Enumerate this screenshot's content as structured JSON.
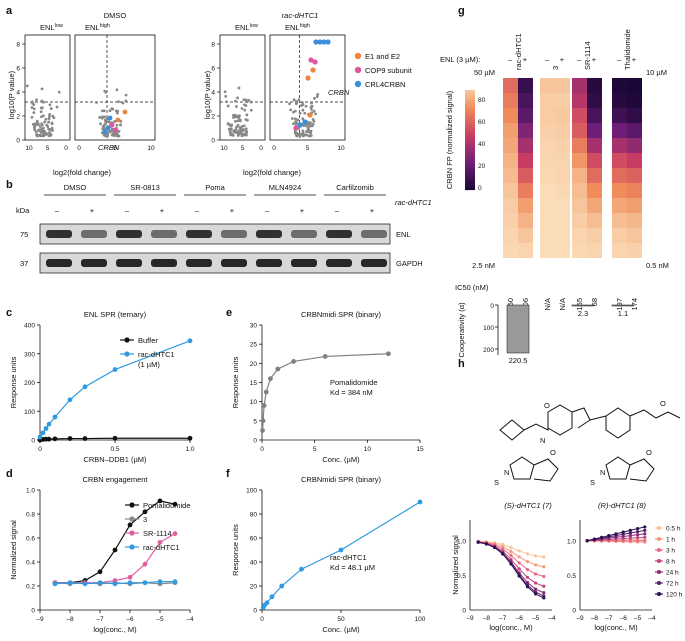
{
  "panel_labels": {
    "a": "a",
    "b": "b",
    "c": "c",
    "d": "d",
    "e": "e",
    "f": "f",
    "g": "g",
    "h": "h"
  },
  "panel_a": {
    "left_title": "DMSO",
    "right_title": "rac-dHTC1",
    "enl_low": "ENL",
    "enl_low_sup": "low",
    "enl_high": "ENL",
    "enl_high_sup": "high",
    "ylabel": "log10(P value)",
    "xlabel": "log2(fold change)",
    "yticks": [
      "0",
      "2",
      "4",
      "6",
      "8"
    ],
    "xticks_left": [
      "10",
      "5",
      "0"
    ],
    "xticks_right": [
      "0",
      "5",
      "10"
    ],
    "gene_crbn": "CRBN",
    "legend": [
      {
        "label": "E1 and E2",
        "color": "#f0843a"
      },
      {
        "label": "COP9 subunit",
        "color": "#e0579e"
      },
      {
        "label": "CRL4CRBN",
        "color": "#3b8fd9"
      }
    ]
  },
  "panel_b": {
    "groups": [
      "DMSO",
      "SR-0813",
      "Poma",
      "MLN4924",
      "Carfilzomib"
    ],
    "kda_label": "kDa",
    "treatment_label": "rac-dHTC1",
    "signs": [
      "–",
      "+",
      "–",
      "+",
      "–",
      "+",
      "–",
      "+",
      "–",
      "+"
    ],
    "rows": [
      {
        "kda": "75",
        "name": "ENL"
      },
      {
        "kda": "37",
        "name": "GAPDH"
      }
    ]
  },
  "chart_data": [
    {
      "panel": "c",
      "type": "line",
      "title": "ENL SPR (ternary)",
      "xlabel": "CRBN–DDB1 (µM)",
      "ylabel": "Response units",
      "xlim": [
        0,
        1
      ],
      "ylim": [
        0,
        400
      ],
      "xticks": [
        "0",
        "0.5",
        "1.0"
      ],
      "yticks": [
        "0",
        "100",
        "200",
        "300",
        "400"
      ],
      "series": [
        {
          "name": "Buffer",
          "color": "#111111",
          "x": [
            0,
            0.02,
            0.04,
            0.06,
            0.1,
            0.2,
            0.3,
            0.5,
            1.0
          ],
          "y": [
            0,
            2,
            3,
            3,
            4,
            5,
            5,
            6,
            6
          ]
        },
        {
          "name": "rac-dHTC1",
          "sub": "(1 µM)",
          "color": "#2f9be0",
          "x": [
            0,
            0.02,
            0.04,
            0.06,
            0.1,
            0.2,
            0.3,
            0.5,
            1.0
          ],
          "y": [
            10,
            25,
            40,
            55,
            80,
            140,
            185,
            245,
            345
          ]
        }
      ]
    },
    {
      "panel": "d",
      "type": "scatter",
      "title": "CRBN engagement",
      "xlabel": "log(conc., M)",
      "ylabel": "Normalized signal",
      "xlim": [
        -9,
        -4
      ],
      "ylim": [
        0,
        1.1
      ],
      "xticks": [
        "–9",
        "–8",
        "–7",
        "–6",
        "–5",
        "–4"
      ],
      "yticks": [
        "0",
        "0.2",
        "0.4",
        "0.6",
        "0.8",
        "1.0"
      ],
      "series": [
        {
          "name": "Pomalidomide",
          "color": "#111111",
          "x": [
            -8.5,
            -8,
            -7.5,
            -7,
            -6.5,
            -6,
            -5.5,
            -5,
            -4.5
          ],
          "y": [
            0.25,
            0.25,
            0.27,
            0.35,
            0.55,
            0.78,
            0.9,
            1.0,
            0.97
          ]
        },
        {
          "name": "3",
          "color": "#888888",
          "x": [
            -8.5,
            -8,
            -7.5,
            -7,
            -6.5,
            -6,
            -5.5,
            -5,
            -4.5
          ],
          "y": [
            0.25,
            0.24,
            0.25,
            0.24,
            0.25,
            0.24,
            0.25,
            0.24,
            0.25
          ]
        },
        {
          "name": "SR-1114",
          "color": "#e05fa0",
          "x": [
            -8.5,
            -8,
            -7.5,
            -7,
            -6.5,
            -6,
            -5.5,
            -5,
            -4.5
          ],
          "y": [
            0.25,
            0.25,
            0.25,
            0.25,
            0.27,
            0.3,
            0.42,
            0.62,
            0.7
          ]
        },
        {
          "name": "rac-dHTC1",
          "color": "#2f9be0",
          "x": [
            -8.5,
            -8,
            -7.5,
            -7,
            -6.5,
            -6,
            -5.5,
            -5,
            -4.5
          ],
          "y": [
            0.24,
            0.25,
            0.24,
            0.25,
            0.24,
            0.25,
            0.25,
            0.26,
            0.26
          ]
        }
      ]
    },
    {
      "panel": "e",
      "type": "scatter",
      "title": "CRBNmidi SPR (binary)",
      "xlabel": "Conc. (µM)",
      "ylabel": "Response units",
      "xlim": [
        0,
        15
      ],
      "ylim": [
        0,
        30
      ],
      "xticks": [
        "0",
        "5",
        "10",
        "15"
      ],
      "yticks": [
        "0",
        "5",
        "10",
        "15",
        "20",
        "25",
        "30"
      ],
      "annotation": "Pomalidomide",
      "kd": "Kd = 384 nM",
      "series": [
        {
          "name": "Pomalidomide",
          "color": "#808080",
          "x": [
            0.05,
            0.1,
            0.2,
            0.4,
            0.8,
            1.5,
            3,
            6,
            12
          ],
          "y": [
            2.5,
            5,
            9,
            12.5,
            16,
            18.5,
            20.5,
            21.8,
            22.5
          ]
        }
      ]
    },
    {
      "panel": "f",
      "type": "scatter",
      "title": "CRBNmidi SPR (binary)",
      "xlabel": "Conc. (µM)",
      "ylabel": "Response units",
      "xlim": [
        0,
        100
      ],
      "ylim": [
        0,
        100
      ],
      "xticks": [
        "0",
        "50",
        "100"
      ],
      "yticks": [
        "0",
        "20",
        "40",
        "60",
        "80",
        "100"
      ],
      "annotation": "rac-dHTC1",
      "kd": "Kd = 48.1 µM",
      "series": [
        {
          "name": "rac-dHTC1",
          "color": "#2f9be0",
          "x": [
            0.8,
            1.6,
            3.1,
            6.3,
            12.5,
            25,
            50,
            100
          ],
          "y": [
            2,
            4,
            6,
            11,
            20,
            34,
            50,
            90
          ]
        }
      ]
    },
    {
      "panel": "g",
      "type": "heatmap",
      "title": "",
      "ylabel": "CRBN FP (normalized signal)",
      "top_label": "50 µM",
      "bottom_label": "2.5 nM",
      "right_top": "10 µM",
      "right_bottom": "0.5 nM",
      "enl_label": "ENL (3 µM):",
      "compounds": [
        "rac-dHTC1",
        "3",
        "SR-1114",
        "Thalidomide"
      ],
      "signs": [
        "–",
        "+",
        "–",
        "+",
        "–",
        "+",
        "–",
        "+"
      ],
      "ic50_label": "IC50 (nM)",
      "ic50": [
        "23,350",
        "106",
        "N/A",
        "N/A",
        "155",
        "68",
        "197",
        "174"
      ],
      "colorbar_ticks": [
        "0",
        "20",
        "40",
        "60",
        "80"
      ],
      "cooperativity_label": "Cooperativity (α)",
      "cooperativity": [
        {
          "compound": "rac-dHTC1",
          "value": 220.5,
          "label": "220.5"
        },
        {
          "compound": "SR-1114",
          "value": 2.3,
          "label": "2.3"
        },
        {
          "compound": "Thalidomide",
          "value": 1.1,
          "label": "1.1"
        }
      ],
      "coop_yticks": [
        "0",
        "100",
        "200"
      ],
      "matrix": [
        [
          65,
          10,
          90,
          90,
          40,
          5,
          3,
          2
        ],
        [
          70,
          15,
          92,
          92,
          45,
          8,
          5,
          3
        ],
        [
          75,
          20,
          92,
          91,
          55,
          15,
          12,
          8
        ],
        [
          80,
          30,
          93,
          92,
          60,
          25,
          25,
          20
        ],
        [
          82,
          40,
          94,
          93,
          70,
          40,
          40,
          35
        ],
        [
          85,
          50,
          94,
          94,
          78,
          55,
          55,
          50
        ],
        [
          87,
          60,
          95,
          94,
          85,
          65,
          65,
          62
        ],
        [
          90,
          70,
          96,
          95,
          88,
          75,
          75,
          72
        ],
        [
          92,
          80,
          96,
          96,
          90,
          82,
          82,
          80
        ],
        [
          93,
          85,
          96,
          96,
          92,
          88,
          88,
          86
        ],
        [
          94,
          90,
          96,
          96,
          94,
          92,
          92,
          90
        ],
        [
          95,
          94,
          96,
          96,
          95,
          94,
          94,
          93
        ]
      ]
    },
    {
      "panel": "h",
      "type": "line",
      "title": "",
      "structure_labels": {
        "s": "(S)-dHTC1 (7)",
        "r": "(R)-dHTC1 (8)",
        "o": "O",
        "n": "N",
        "h": "H",
        "s_atom": "S"
      },
      "xlabel": "log(conc., M)",
      "ylabel": "Normalized signal",
      "xticks": [
        "–9",
        "–8",
        "–7",
        "–6",
        "–5",
        "–4"
      ],
      "yticks": [
        "0",
        "0.5",
        "1.0"
      ],
      "xlim": [
        -9,
        -4
      ],
      "ylim": [
        0,
        1.3
      ],
      "legend": [
        "0.5 h",
        "1 h",
        "3 h",
        "8 h",
        "24 h",
        "72 h",
        "120 h"
      ],
      "colors": [
        "#f7c59f",
        "#f49b7f",
        "#e86b85",
        "#c2447e",
        "#8a2a75",
        "#56206a",
        "#2a1150"
      ],
      "left_final": [
        0.75,
        0.6,
        0.45,
        0.3,
        0.2,
        0.15,
        0.12
      ],
      "right_final": [
        1.02,
        0.98,
        1.0,
        1.05,
        1.1,
        1.15,
        1.2
      ]
    }
  ]
}
